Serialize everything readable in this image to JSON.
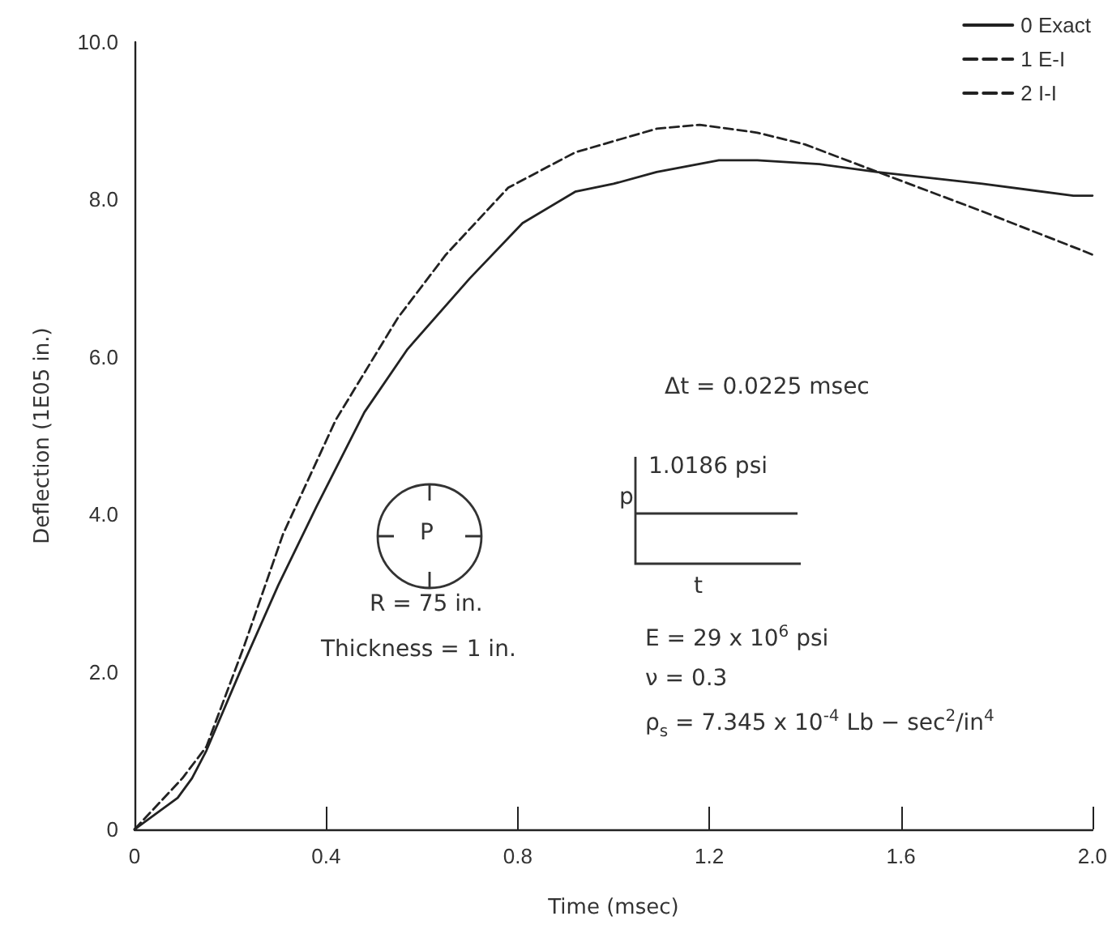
{
  "chart_data": {
    "type": "line",
    "xlabel": "Time (msec)",
    "ylabel": "Deflection (1E05 in.)",
    "xlim": [
      0,
      2.0
    ],
    "ylim": [
      0,
      10
    ],
    "xticks": [
      0,
      0.4,
      0.8,
      1.2,
      1.6,
      {
        "value": 2,
        "label": "2.0"
      }
    ],
    "yticks": [
      {
        "value": 0,
        "label": "0"
      },
      {
        "value": 2,
        "label": "2.0"
      },
      {
        "value": 4,
        "label": "4.0"
      },
      {
        "value": 6,
        "label": "6.0"
      },
      {
        "value": 8,
        "label": "8.0"
      },
      {
        "value": 10,
        "label": "10.0"
      }
    ],
    "grid": false,
    "legend": "top right",
    "marker": "none",
    "series": [
      {
        "name": "0 Exact",
        "color": "#222222",
        "line_style": "solid",
        "x": [
          0,
          0.09,
          0.12,
          0.15,
          0.22,
          0.3,
          0.38,
          0.48,
          0.57,
          0.7,
          0.81,
          0.92,
          1.0,
          1.09,
          1.22,
          1.3,
          1.43,
          1.55,
          1.77,
          1.96,
          2.0
        ],
        "values": [
          0,
          0.4,
          0.65,
          1.0,
          2.0,
          3.1,
          4.1,
          5.3,
          6.1,
          7.0,
          7.7,
          8.1,
          8.2,
          8.35,
          8.5,
          8.5,
          8.45,
          8.35,
          8.2,
          8.05,
          8.05
        ]
      },
      {
        "name": "1 E-I",
        "color": "#222222",
        "line_style": "dashed",
        "x": [
          0,
          0.1,
          0.15,
          0.23,
          0.31,
          0.42,
          0.55,
          0.65,
          0.78,
          0.92,
          1.09,
          1.18,
          1.3,
          1.4,
          1.53,
          1.77,
          1.98,
          2.0
        ],
        "values": [
          0,
          0.65,
          1.05,
          2.35,
          3.75,
          5.2,
          6.5,
          7.3,
          8.15,
          8.6,
          8.9,
          8.95,
          8.85,
          8.7,
          8.4,
          7.85,
          7.35,
          7.3
        ]
      },
      {
        "name": "2 I-I",
        "color": "#222222",
        "line_style": "dashed",
        "values": [
          null
        ]
      }
    ],
    "annotations": [
      "Δt = 0.0225 msec",
      "1.0186 psi",
      "p",
      "t",
      "R = 75 in.",
      "Thickness = 1 in.",
      "E = 29 x 10$^{6}$ psi",
      "ν = 0.3",
      "ρ$_{s}$ = 7.345 x 10$^{-4}$ Lb − sec$^{2}$/in$^{4}$",
      "P"
    ]
  }
}
